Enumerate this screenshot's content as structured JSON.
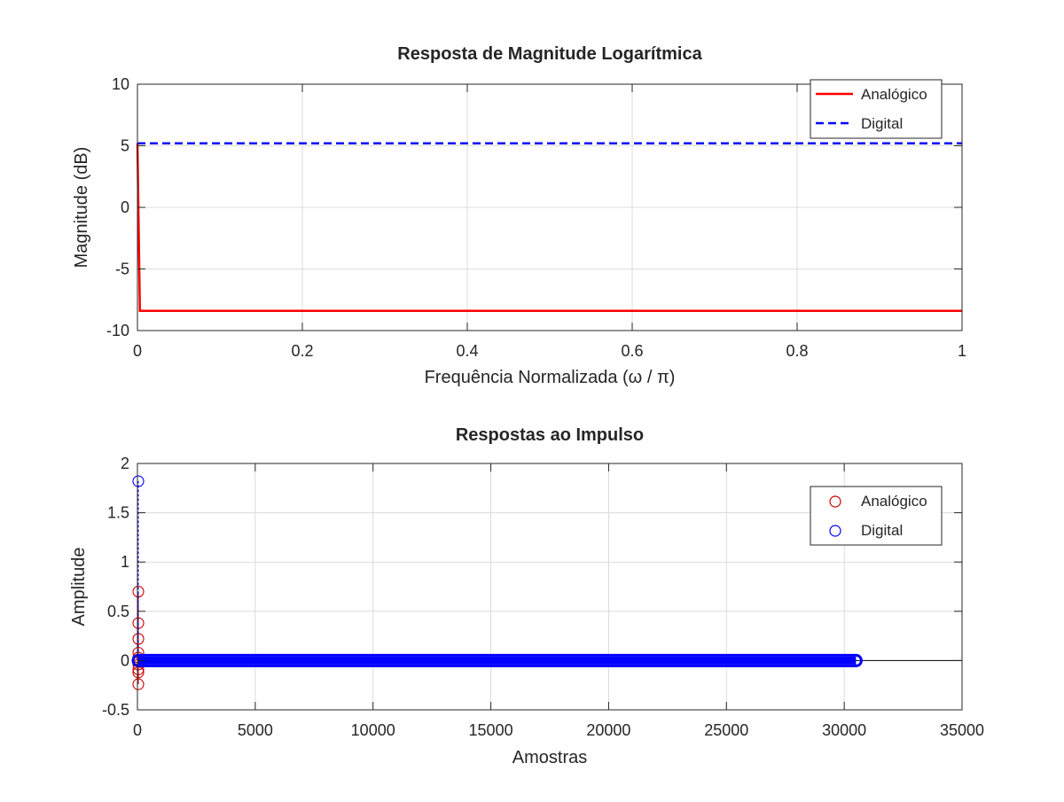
{
  "chart_data": [
    {
      "type": "line",
      "title": "Resposta de Magnitude Logarítmica",
      "xlabel": "Frequência Normalizada (ω / π)",
      "ylabel": "Magnitude (dB)",
      "xlim": [
        0,
        1
      ],
      "ylim": [
        -10,
        10
      ],
      "xticks": [
        0,
        0.2,
        0.4,
        0.6,
        0.8,
        1
      ],
      "xtick_labels": [
        "0",
        "0.2",
        "0.4",
        "0.6",
        "0.8",
        "1"
      ],
      "yticks": [
        -10,
        -5,
        0,
        5,
        10
      ],
      "ytick_labels": [
        "-10",
        "-5",
        "0",
        "5",
        "10"
      ],
      "grid": true,
      "legend_position": "top-right",
      "series": [
        {
          "name": "Analógico",
          "color": "#ff0000",
          "style": "solid",
          "x": [
            0,
            0.003,
            1
          ],
          "y": [
            5.2,
            -8.4,
            -8.4
          ]
        },
        {
          "name": "Digital",
          "color": "#0000ff",
          "style": "dashed",
          "x": [
            0,
            1
          ],
          "y": [
            5.2,
            5.2
          ]
        }
      ]
    },
    {
      "type": "stem",
      "title": "Respostas ao Impulso",
      "xlabel": "Amostras",
      "ylabel": "Amplitude",
      "xlim": [
        0,
        35000
      ],
      "ylim": [
        -0.5,
        2
      ],
      "xticks": [
        0,
        5000,
        10000,
        15000,
        20000,
        25000,
        30000,
        35000
      ],
      "xtick_labels": [
        "0",
        "5000",
        "10000",
        "15000",
        "20000",
        "25000",
        "30000",
        "35000"
      ],
      "yticks": [
        -0.5,
        0,
        0.5,
        1,
        1.5,
        2
      ],
      "ytick_labels": [
        "-0.5",
        "0",
        "0.5",
        "1",
        "1.5",
        "2"
      ],
      "grid": true,
      "legend_position": "top-right",
      "series": [
        {
          "name": "Analógico",
          "color": "#cc0000",
          "marker": "circle",
          "x": [
            0,
            0,
            0,
            0,
            0,
            0,
            0,
            0,
            0
          ],
          "y": [
            0.7,
            0.38,
            0.22,
            0.08,
            0.03,
            -0.04,
            -0.09,
            -0.12,
            -0.24
          ]
        },
        {
          "name": "Digital",
          "color": "#0000ff",
          "marker": "circle",
          "x": [
            0
          ],
          "y": [
            1.82
          ],
          "dense_zero_range": [
            0,
            30500
          ]
        }
      ]
    }
  ]
}
